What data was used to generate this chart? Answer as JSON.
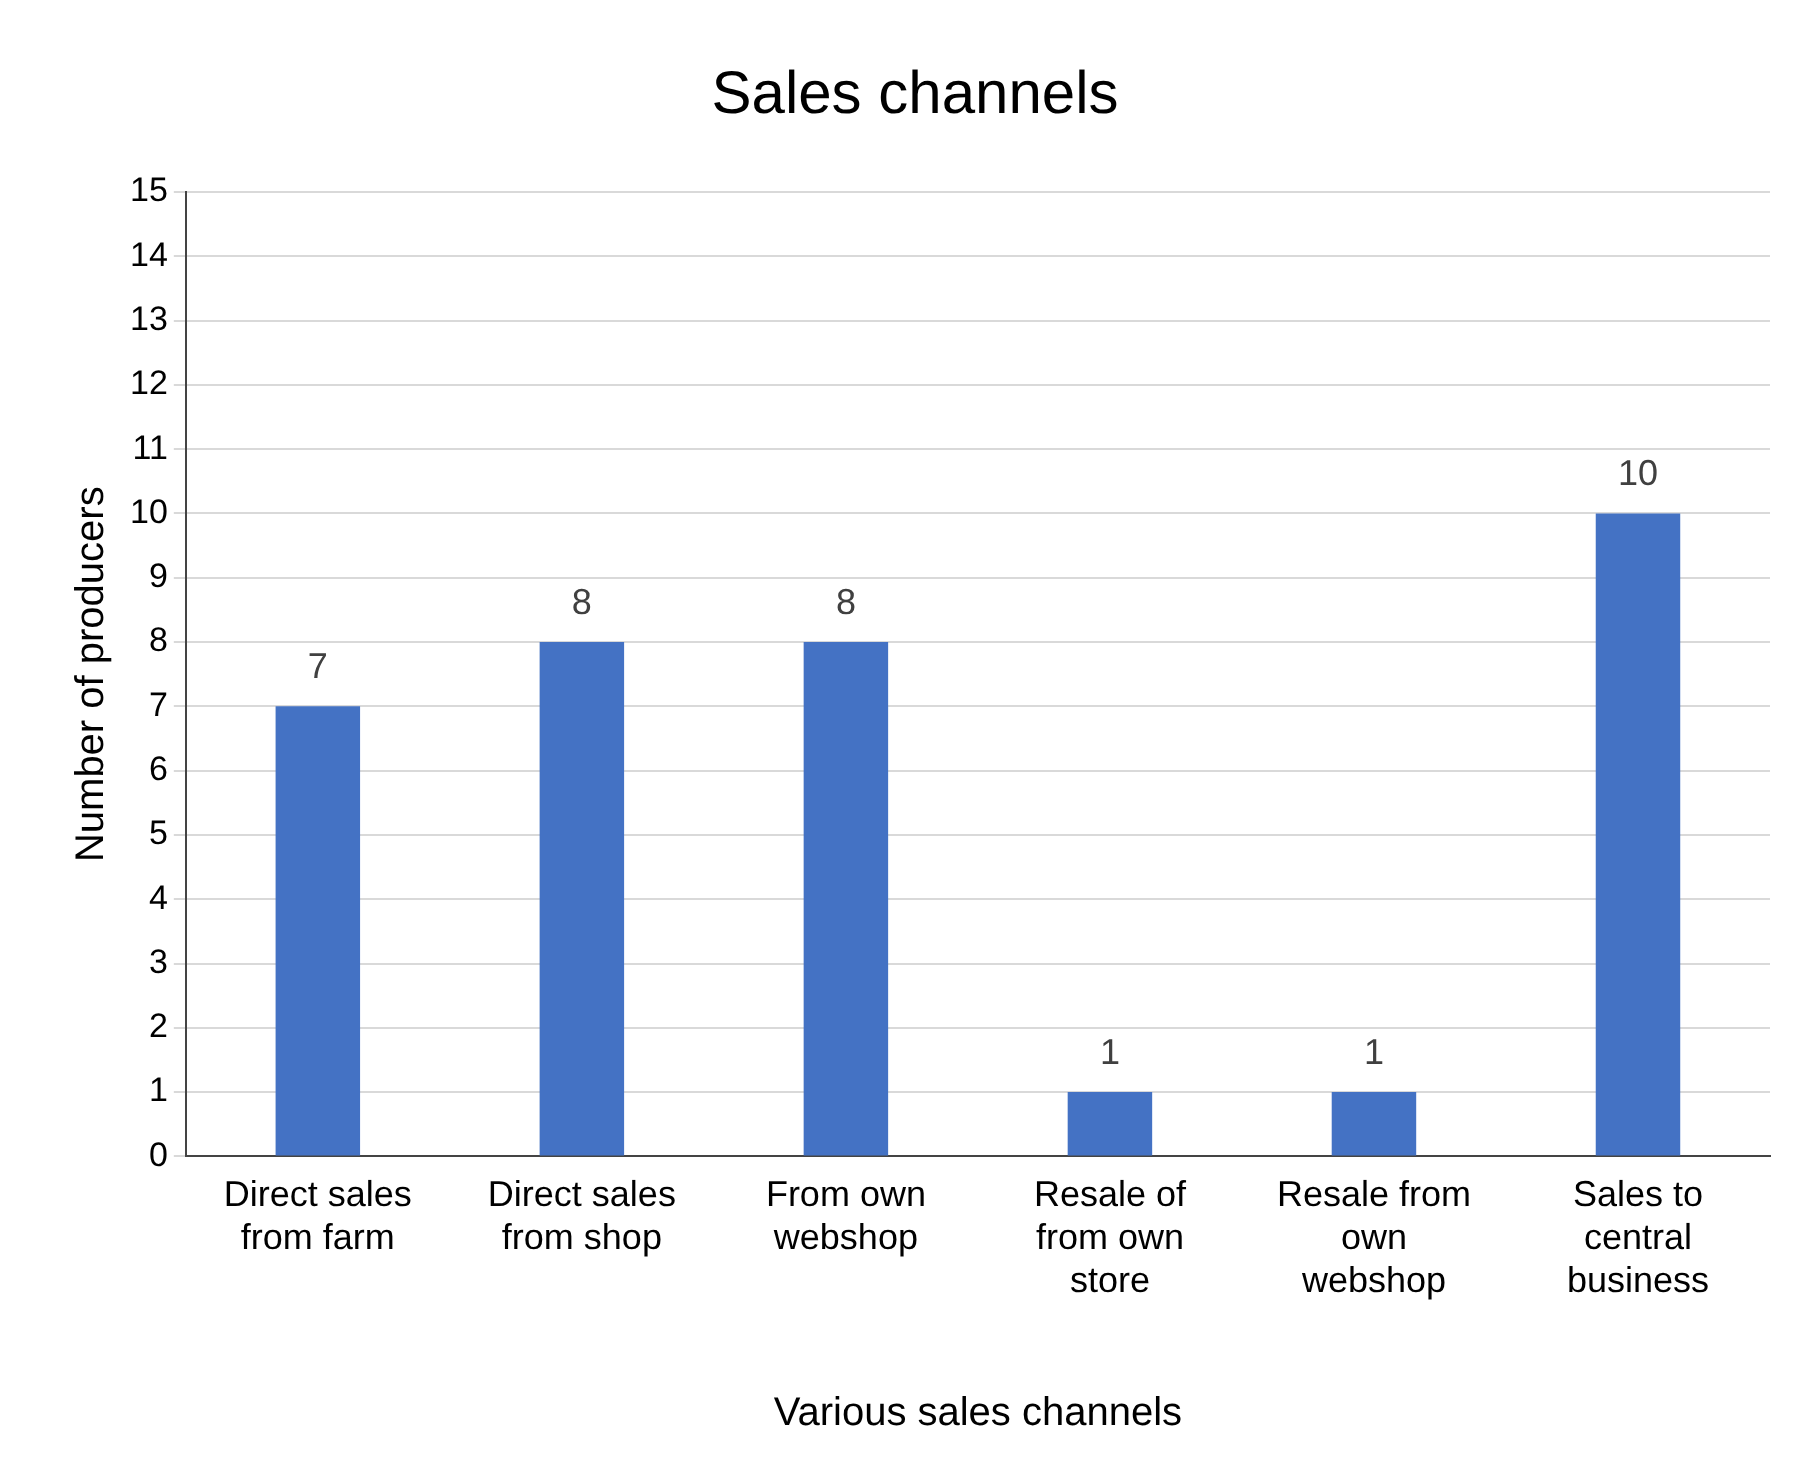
{
  "chart_data": {
    "type": "bar",
    "title": "Sales channels",
    "xlabel": "Various sales channels",
    "ylabel": "Number of producers",
    "categories": [
      "Direct sales from farm",
      "Direct sales from shop",
      "From own webshop",
      "Resale of from own store",
      "Resale from own webshop",
      "Sales to central business"
    ],
    "values": [
      7,
      8,
      8,
      1,
      1,
      10
    ],
    "color": "#4472c4",
    "ylim": [
      0,
      15
    ],
    "yticks": [
      0,
      1,
      2,
      3,
      4,
      5,
      6,
      7,
      8,
      9,
      10,
      11,
      12,
      13,
      14,
      15
    ],
    "grid": "y",
    "data_labels": true,
    "legend": false
  }
}
